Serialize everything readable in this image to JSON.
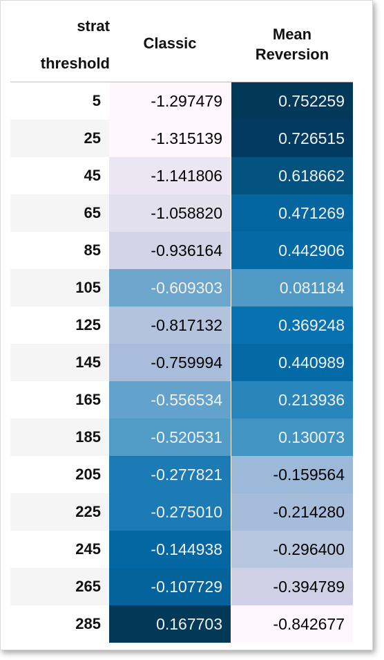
{
  "table": {
    "columns_name": "strat",
    "index_name": "threshold",
    "columns": [
      "Classic",
      "Mean\nReversion"
    ],
    "rows": [
      {
        "threshold": "5",
        "classic": "-1.297479",
        "mean_reversion": "0.752259",
        "classic_bg": "#fff7fb",
        "classic_fg": "#000000",
        "mr_bg": "#023858",
        "mr_fg": "#f1f1f1"
      },
      {
        "threshold": "25",
        "classic": "-1.315139",
        "mean_reversion": "0.726515",
        "classic_bg": "#fff7fb",
        "classic_fg": "#000000",
        "mr_bg": "#023b62",
        "mr_fg": "#f1f1f1"
      },
      {
        "threshold": "45",
        "classic": "-1.141806",
        "mean_reversion": "0.618662",
        "classic_bg": "#ebe6f2",
        "classic_fg": "#000000",
        "mr_bg": "#045280",
        "mr_fg": "#f1f1f1"
      },
      {
        "threshold": "65",
        "classic": "-1.058820",
        "mean_reversion": "0.471269",
        "classic_bg": "#e3e0ee",
        "classic_fg": "#000000",
        "mr_bg": "#0565a0",
        "mr_fg": "#f1f1f1"
      },
      {
        "threshold": "85",
        "classic": "-0.936164",
        "mean_reversion": "0.442906",
        "classic_bg": "#d3d4e7",
        "classic_fg": "#000000",
        "mr_bg": "#046aa6",
        "mr_fg": "#f1f1f1"
      },
      {
        "threshold": "105",
        "classic": "-0.609303",
        "mean_reversion": "0.081184",
        "classic_bg": "#6ca6cc",
        "classic_fg": "#f1f1f1",
        "mr_bg": "#509ac5",
        "mr_fg": "#f1f1f1"
      },
      {
        "threshold": "125",
        "classic": "-0.817132",
        "mean_reversion": "0.369248",
        "classic_bg": "#b3c3de",
        "classic_fg": "#000000",
        "mr_bg": "#0872b1",
        "mr_fg": "#f1f1f1"
      },
      {
        "threshold": "145",
        "classic": "-0.759994",
        "mean_reversion": "0.440989",
        "classic_bg": "#a7bddb",
        "classic_fg": "#000000",
        "mr_bg": "#046aa6",
        "mr_fg": "#f1f1f1"
      },
      {
        "threshold": "165",
        "classic": "-0.556534",
        "mean_reversion": "0.213936",
        "classic_bg": "#62a2cb",
        "classic_fg": "#f1f1f1",
        "mr_bg": "#2986bb",
        "mr_fg": "#f1f1f1"
      },
      {
        "threshold": "185",
        "classic": "-0.520531",
        "mean_reversion": "0.130073",
        "classic_bg": "#519cc7",
        "classic_fg": "#f1f1f1",
        "mr_bg": "#4095c3",
        "mr_fg": "#f1f1f1"
      },
      {
        "threshold": "205",
        "classic": "-0.277821",
        "mean_reversion": "-0.159564",
        "classic_bg": "#1c7ab5",
        "classic_fg": "#f1f1f1",
        "mr_bg": "#9cb9d9",
        "mr_fg": "#000000"
      },
      {
        "threshold": "225",
        "classic": "-0.275010",
        "mean_reversion": "-0.214280",
        "classic_bg": "#1c7ab5",
        "classic_fg": "#f1f1f1",
        "mr_bg": "#a5bddb",
        "mr_fg": "#000000"
      },
      {
        "threshold": "245",
        "classic": "-0.144938",
        "mean_reversion": "-0.296400",
        "classic_bg": "#0567a1",
        "classic_fg": "#f1f1f1",
        "mr_bg": "#b8c6e0",
        "mr_fg": "#000000"
      },
      {
        "threshold": "265",
        "classic": "-0.107729",
        "mean_reversion": "-0.394789",
        "classic_bg": "#04639b",
        "classic_fg": "#f1f1f1",
        "mr_bg": "#cfd0e6",
        "mr_fg": "#000000"
      },
      {
        "threshold": "285",
        "classic": "0.167703",
        "mean_reversion": "-0.842677",
        "classic_bg": "#023858",
        "classic_fg": "#f1f1f1",
        "mr_bg": "#fff7fb",
        "mr_fg": "#000000"
      }
    ]
  }
}
